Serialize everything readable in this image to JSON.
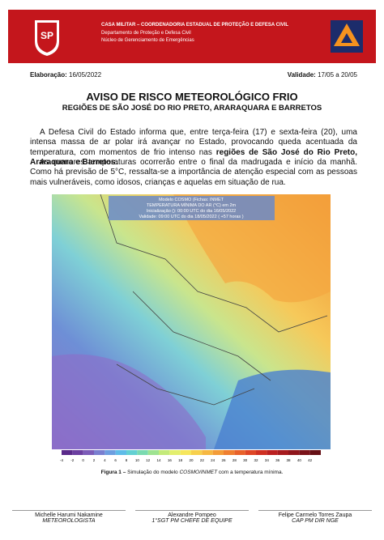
{
  "header": {
    "line1": "CASA MILITAR – COORDENADORIA ESTADUAL DE PROTEÇÃO E DEFESA CIVIL",
    "line2": "Departamento de Proteção e Defesa Civil",
    "line3": "Núcleo de Gerenciamento de Emergências"
  },
  "meta": {
    "elaboracao_label": "Elaboração:",
    "elaboracao": "16/05/2022",
    "validade_label": "Validade:",
    "validade": "17/05 a 20/05"
  },
  "title": "AVISO DE RISCO METEOROLÓGICO FRIO",
  "subtitle": "REGIÕES DE SÃO JOSÉ DO RIO PRETO, ARARAQUARA E BARRETOS",
  "paragraphs": [
    [
      "A Defesa Civil do Estado informa que, entre terça-feira (17) e sexta-feira (20), uma intensa massa de ar polar irá avançar no Estado, provocando queda acentuada da temperatura, com momentos de frio intenso nas ",
      "regiões de São José do Rio Preto, Araraquara e Barretos",
      "."
    ],
    [
      "As menores temperaturas ocorrerão entre o final da madrugada e início da manhã. Como há previsão de 5°C, ressalta-se a importância de atenção especial com as pessoas mais vulneráveis, como idosos, crianças e aquelas em situação de rua."
    ]
  ],
  "map": {
    "line1": "Modelo COSMO (Fichas: INMET",
    "line2": "TEMPERATURA MÍNIMA DO AR (°C) em 2m",
    "line3": "Inicialização (): 00:00 UTC do dia 16/05/2022",
    "line4": "Validade: 09:00 UTC do dia 18/05/2022 ( +57 horas )",
    "colorbar": [
      "-4",
      "-2",
      "0",
      "2",
      "4",
      "6",
      "8",
      "10",
      "12",
      "14",
      "16",
      "18",
      "20",
      "22",
      "24",
      "26",
      "28",
      "30",
      "32",
      "34",
      "36",
      "38",
      "40",
      "42"
    ]
  },
  "caption": {
    "label": "Figura 1 –",
    "text": "Simulação do modelo",
    "model": "COSMO/INMET",
    "rest": "com a temperatura mínima."
  },
  "signatures": [
    {
      "name": "Michelle Harumi Nakamine",
      "role": "METEOROLOGISTA"
    },
    {
      "name": "Alexandre Pompeo",
      "role": "1°SGT PM CHEFE DE EQUIPE"
    },
    {
      "name": "Felipe Carmelo Torres Zaupa",
      "role": "CAP PM DIR NGE"
    }
  ]
}
